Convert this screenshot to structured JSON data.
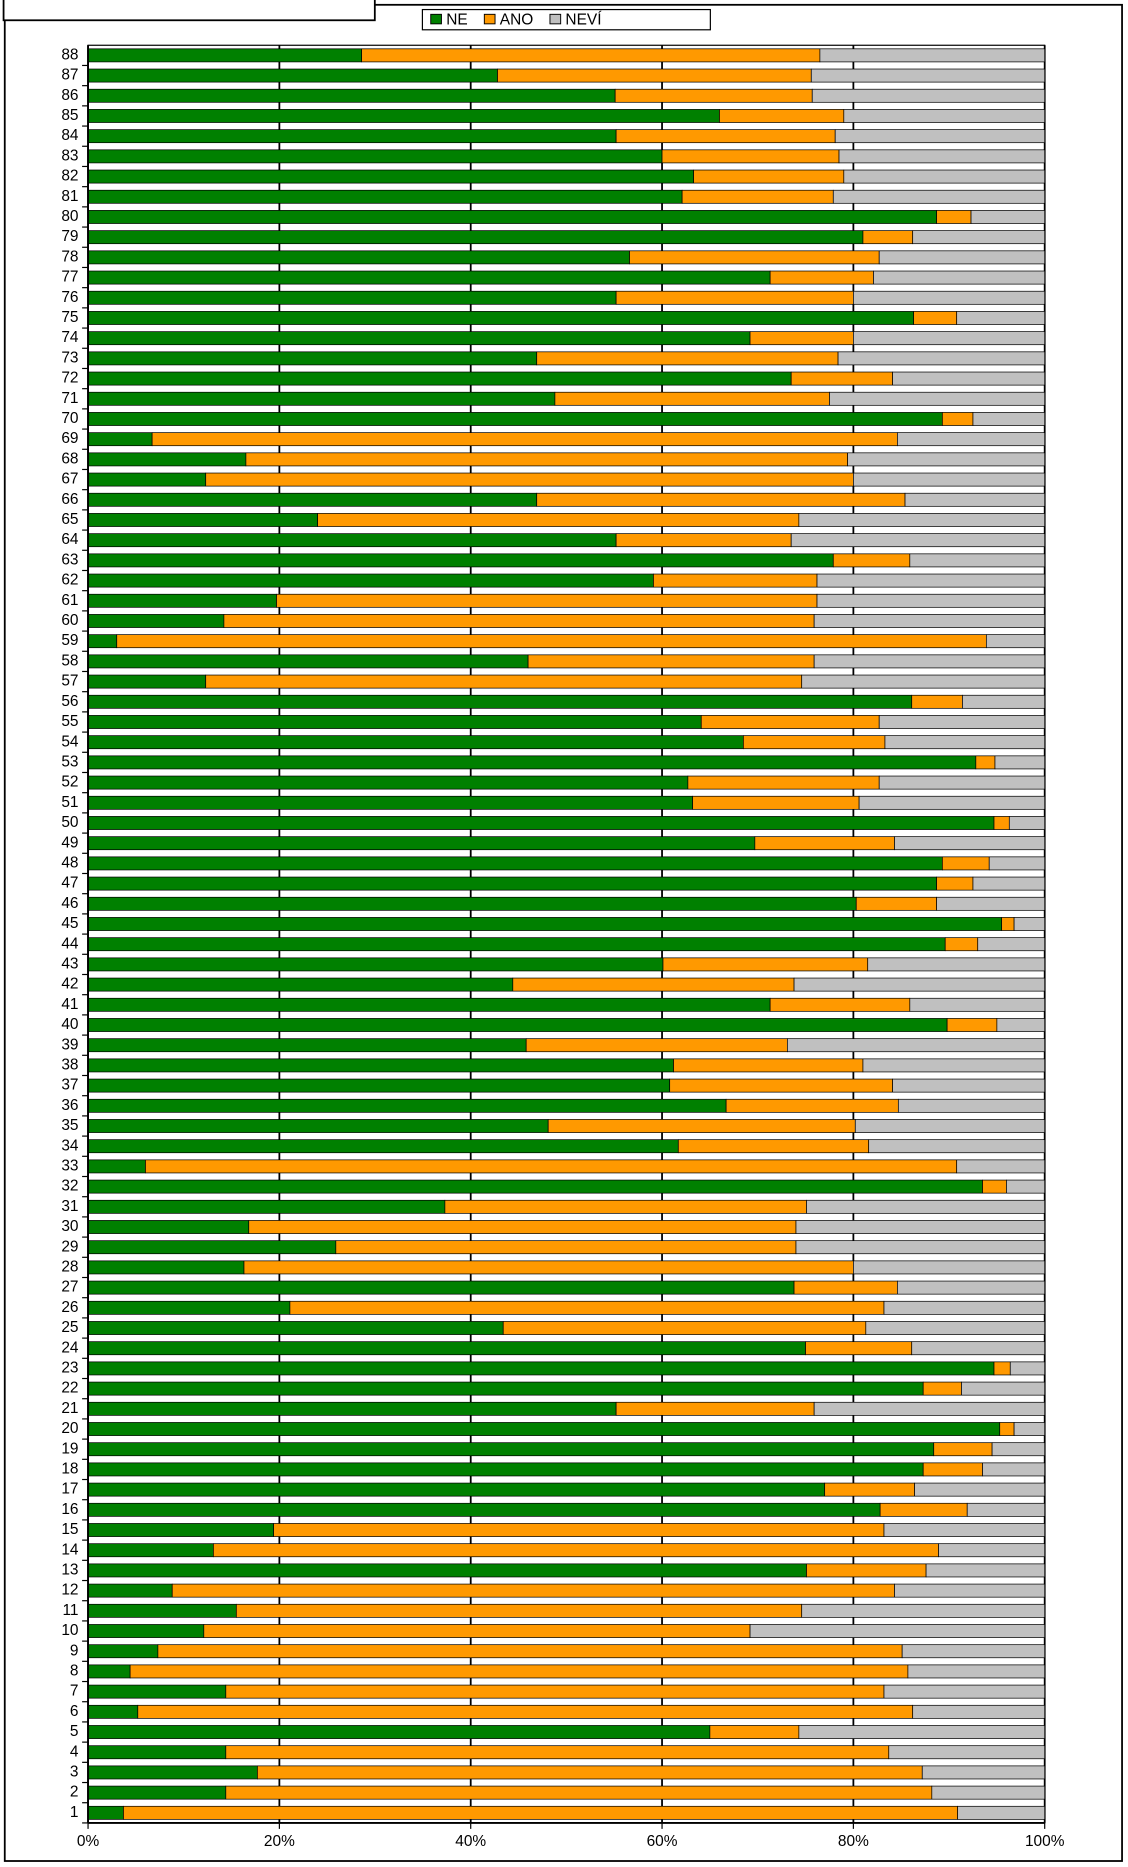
{
  "chart_data": {
    "type": "bar",
    "orientation": "horizontal",
    "stacked": true,
    "categories": [
      "1",
      "2",
      "3",
      "4",
      "5",
      "6",
      "7",
      "8",
      "9",
      "10",
      "11",
      "12",
      "13",
      "14",
      "15",
      "16",
      "17",
      "18",
      "19",
      "20",
      "21",
      "22",
      "23",
      "24",
      "25",
      "26",
      "27",
      "28",
      "29",
      "30",
      "31",
      "32",
      "33",
      "34",
      "35",
      "36",
      "37",
      "38",
      "39",
      "40",
      "41",
      "42",
      "43",
      "44",
      "45",
      "46",
      "47",
      "48",
      "49",
      "50",
      "51",
      "52",
      "53",
      "54",
      "55",
      "56",
      "57",
      "58",
      "59",
      "60",
      "61",
      "62",
      "63",
      "64",
      "65",
      "66",
      "67",
      "68",
      "69",
      "70",
      "71",
      "72",
      "73",
      "74",
      "75",
      "76",
      "77",
      "78",
      "79",
      "80",
      "81",
      "82",
      "83",
      "84",
      "85",
      "86",
      "87",
      "88"
    ],
    "series": [
      {
        "name": "NE",
        "color": "#008000",
        "values": [
          3.7,
          14.4,
          17.7,
          14.4,
          65.0,
          5.2,
          14.4,
          4.4,
          7.3,
          12.1,
          15.5,
          8.8,
          75.1,
          13.1,
          19.4,
          82.8,
          77.0,
          87.3,
          88.4,
          95.3,
          55.2,
          87.3,
          94.7,
          75.0,
          43.4,
          21.1,
          73.8,
          16.3,
          25.9,
          16.8,
          37.3,
          93.5,
          6.0,
          61.7,
          48.1,
          66.7,
          60.8,
          61.2,
          45.8,
          89.8,
          71.3,
          44.4,
          60.1,
          89.6,
          95.5,
          80.3,
          88.7,
          89.3,
          69.7,
          94.7,
          63.2,
          62.7,
          92.8,
          68.5,
          64.1,
          86.1,
          12.3,
          46.0,
          3.0,
          14.2,
          19.7,
          59.1,
          77.9,
          55.2,
          24.0,
          46.9,
          12.3,
          16.5,
          6.7,
          89.3,
          48.8,
          73.5,
          46.9,
          69.2,
          86.3,
          55.2,
          71.3,
          56.6,
          81.0,
          88.7,
          62.1,
          63.3,
          60.0,
          55.2,
          66.0,
          55.1,
          42.8,
          28.6
        ]
      },
      {
        "name": "ANO",
        "color": "#ff9900",
        "values": [
          87.2,
          73.8,
          69.5,
          69.3,
          9.3,
          81.0,
          68.8,
          81.3,
          77.8,
          57.1,
          59.1,
          75.5,
          12.5,
          75.8,
          63.8,
          9.1,
          9.4,
          6.2,
          6.1,
          1.5,
          20.7,
          4.0,
          1.7,
          11.1,
          37.9,
          62.1,
          10.8,
          63.7,
          48.1,
          57.2,
          37.8,
          2.5,
          84.8,
          19.9,
          32.1,
          18.0,
          23.3,
          19.8,
          27.3,
          5.2,
          14.6,
          29.4,
          21.4,
          3.4,
          1.3,
          8.4,
          3.8,
          4.9,
          14.6,
          1.6,
          17.4,
          20.0,
          2.0,
          14.8,
          18.6,
          5.3,
          62.3,
          29.9,
          90.9,
          61.7,
          56.5,
          17.1,
          8.0,
          18.3,
          50.3,
          38.5,
          67.7,
          62.9,
          77.9,
          3.2,
          28.7,
          10.6,
          31.5,
          10.8,
          4.5,
          24.8,
          10.8,
          26.1,
          5.2,
          3.6,
          15.8,
          15.7,
          18.5,
          22.9,
          13.0,
          20.6,
          32.8,
          47.9
        ]
      },
      {
        "name": "NEVÍ",
        "color": "#c0c0c0",
        "values": [
          9.1,
          11.8,
          12.8,
          16.3,
          25.7,
          13.8,
          16.8,
          14.3,
          14.9,
          30.8,
          25.4,
          15.7,
          12.4,
          11.1,
          16.8,
          8.1,
          13.6,
          6.5,
          5.5,
          3.2,
          24.1,
          8.7,
          3.6,
          13.9,
          18.7,
          16.8,
          15.4,
          20.0,
          26.0,
          26.0,
          24.9,
          4.0,
          9.2,
          18.4,
          19.8,
          15.3,
          15.9,
          19.0,
          26.9,
          5.0,
          14.1,
          26.2,
          18.5,
          7.0,
          3.2,
          11.3,
          7.5,
          5.8,
          15.7,
          3.7,
          19.4,
          17.3,
          5.2,
          16.7,
          17.3,
          8.6,
          25.4,
          24.1,
          6.1,
          24.1,
          23.8,
          23.8,
          14.1,
          26.5,
          25.7,
          14.6,
          20.0,
          20.6,
          15.4,
          7.5,
          22.5,
          15.9,
          21.6,
          20.0,
          9.2,
          20.0,
          17.9,
          17.3,
          13.8,
          7.7,
          22.1,
          21.0,
          21.5,
          21.9,
          21.0,
          24.3,
          24.4,
          23.5
        ]
      }
    ],
    "xlim": [
      0,
      100
    ],
    "xticks": [
      {
        "value": 0,
        "label": "0%"
      },
      {
        "value": 20,
        "label": "20%"
      },
      {
        "value": 40,
        "label": "40%"
      },
      {
        "value": 60,
        "label": "60%"
      },
      {
        "value": 80,
        "label": "80%"
      },
      {
        "value": 100,
        "label": "100%"
      }
    ],
    "grid": true,
    "legend": "top"
  }
}
